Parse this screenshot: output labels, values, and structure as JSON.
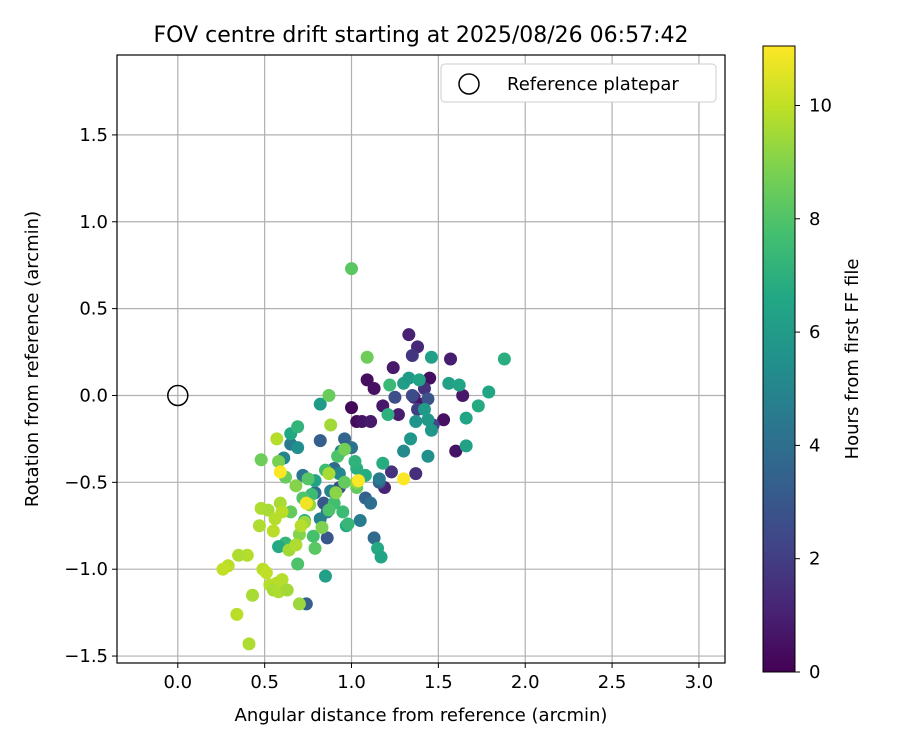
{
  "chart_data": {
    "type": "scatter",
    "title": "FOV centre drift starting at 2025/08/26 06:57:42",
    "xlabel": "Angular distance from reference (arcmin)",
    "ylabel": "Rotation from reference (arcmin)",
    "xlim": [
      -0.35,
      3.15
    ],
    "ylim": [
      -1.54,
      1.96
    ],
    "xticks": [
      0.0,
      0.5,
      1.0,
      1.5,
      2.0,
      2.5,
      3.0
    ],
    "xtick_labels": [
      "0.0",
      "0.5",
      "1.0",
      "1.5",
      "2.0",
      "2.5",
      "3.0"
    ],
    "yticks": [
      -1.5,
      -1.0,
      -0.5,
      0.0,
      0.5,
      1.0,
      1.5
    ],
    "ytick_labels": [
      "−1.5",
      "−1.0",
      "−0.5",
      "0.0",
      "0.5",
      "1.0",
      "1.5"
    ],
    "grid": true,
    "colormap": "viridis",
    "colorbar": {
      "label": "Hours from first FF file",
      "min": 0,
      "max": 11.05,
      "ticks": [
        0,
        2,
        4,
        6,
        8,
        10
      ],
      "tick_labels": [
        "0",
        "2",
        "4",
        "6",
        "8",
        "10"
      ]
    },
    "legend": {
      "position": "top-right",
      "entries": [
        {
          "label": "Reference platepar",
          "marker": "open-circle",
          "color": "#000000"
        }
      ]
    },
    "reference_point": {
      "x": 0.0,
      "y": 0.0
    },
    "points": [
      {
        "x": 1.0,
        "y": -0.07,
        "h": 0.2
      },
      {
        "x": 1.03,
        "y": -0.15,
        "h": 0.3
      },
      {
        "x": 1.09,
        "y": 0.09,
        "h": 0.4
      },
      {
        "x": 1.13,
        "y": 0.04,
        "h": 0.5
      },
      {
        "x": 1.18,
        "y": -0.06,
        "h": 0.7
      },
      {
        "x": 1.24,
        "y": 0.16,
        "h": 0.8
      },
      {
        "x": 1.27,
        "y": -0.11,
        "h": 0.9
      },
      {
        "x": 1.33,
        "y": 0.35,
        "h": 1.0
      },
      {
        "x": 1.36,
        "y": -0.01,
        "h": 1.1
      },
      {
        "x": 1.38,
        "y": 0.28,
        "h": 1.2
      },
      {
        "x": 1.41,
        "y": -0.05,
        "h": 0.6
      },
      {
        "x": 1.45,
        "y": 0.1,
        "h": 0.4
      },
      {
        "x": 1.53,
        "y": -0.14,
        "h": 0.5
      },
      {
        "x": 1.57,
        "y": 0.21,
        "h": 0.9
      },
      {
        "x": 1.6,
        "y": -0.32,
        "h": 0.6
      },
      {
        "x": 1.64,
        "y": 0.0,
        "h": 0.7
      },
      {
        "x": 1.42,
        "y": 0.04,
        "h": 1.6
      },
      {
        "x": 1.35,
        "y": 0.23,
        "h": 1.7
      },
      {
        "x": 1.23,
        "y": -0.44,
        "h": 1.6
      },
      {
        "x": 1.06,
        "y": -0.15,
        "h": 0.6
      },
      {
        "x": 1.11,
        "y": -0.15,
        "h": 0.8
      },
      {
        "x": 1.37,
        "y": -0.45,
        "h": 1.5
      },
      {
        "x": 1.19,
        "y": -0.53,
        "h": 1.1
      },
      {
        "x": 1.47,
        "y": -0.17,
        "h": 2.3
      },
      {
        "x": 1.38,
        "y": -0.08,
        "h": 2.0
      },
      {
        "x": 1.44,
        "y": -0.02,
        "h": 2.8
      },
      {
        "x": 1.25,
        "y": -0.01,
        "h": 2.6
      },
      {
        "x": 1.35,
        "y": 0.0,
        "h": 2.5
      },
      {
        "x": 0.82,
        "y": -0.26,
        "h": 3.3
      },
      {
        "x": 0.93,
        "y": -0.53,
        "h": 2.7
      },
      {
        "x": 0.84,
        "y": -0.62,
        "h": 3.0
      },
      {
        "x": 0.96,
        "y": -0.25,
        "h": 3.6
      },
      {
        "x": 0.74,
        "y": -1.2,
        "h": 3.3
      },
      {
        "x": 0.86,
        "y": -0.82,
        "h": 3.0
      },
      {
        "x": 1.13,
        "y": -0.82,
        "h": 3.8
      },
      {
        "x": 1.16,
        "y": -0.5,
        "h": 3.3
      },
      {
        "x": 1.08,
        "y": -0.59,
        "h": 3.5
      },
      {
        "x": 0.9,
        "y": -0.42,
        "h": 3.8
      },
      {
        "x": 0.79,
        "y": -0.56,
        "h": 3.9
      },
      {
        "x": 0.72,
        "y": -0.46,
        "h": 4.3
      },
      {
        "x": 1.16,
        "y": -0.48,
        "h": 4.5
      },
      {
        "x": 1.11,
        "y": -0.62,
        "h": 4.0
      },
      {
        "x": 1.05,
        "y": -0.72,
        "h": 4.6
      },
      {
        "x": 0.86,
        "y": -0.67,
        "h": 4.2
      },
      {
        "x": 0.88,
        "y": -0.55,
        "h": 4.9
      },
      {
        "x": 0.93,
        "y": -0.45,
        "h": 5.1
      },
      {
        "x": 0.82,
        "y": -0.71,
        "h": 4.8
      },
      {
        "x": 0.94,
        "y": -0.32,
        "h": 5.0
      },
      {
        "x": 1.0,
        "y": -0.3,
        "h": 4.2
      },
      {
        "x": 0.65,
        "y": -0.28,
        "h": 4.5
      },
      {
        "x": 0.61,
        "y": -0.36,
        "h": 5.0
      },
      {
        "x": 0.69,
        "y": -0.3,
        "h": 5.5
      },
      {
        "x": 1.3,
        "y": -0.32,
        "h": 5.2
      },
      {
        "x": 1.34,
        "y": -0.25,
        "h": 5.8
      },
      {
        "x": 1.44,
        "y": -0.35,
        "h": 5.5
      },
      {
        "x": 1.46,
        "y": -0.2,
        "h": 5.8
      },
      {
        "x": 1.44,
        "y": -0.14,
        "h": 5.9
      },
      {
        "x": 1.42,
        "y": -0.08,
        "h": 6.0
      },
      {
        "x": 1.37,
        "y": -0.15,
        "h": 5.7
      },
      {
        "x": 1.3,
        "y": 0.07,
        "h": 6.1
      },
      {
        "x": 1.33,
        "y": 0.1,
        "h": 6.0
      },
      {
        "x": 1.39,
        "y": 0.09,
        "h": 6.4
      },
      {
        "x": 1.46,
        "y": 0.22,
        "h": 6.2
      },
      {
        "x": 1.56,
        "y": 0.07,
        "h": 6.3
      },
      {
        "x": 1.62,
        "y": 0.06,
        "h": 6.5
      },
      {
        "x": 1.66,
        "y": -0.13,
        "h": 6.5
      },
      {
        "x": 1.66,
        "y": -0.29,
        "h": 6.3
      },
      {
        "x": 1.73,
        "y": -0.06,
        "h": 6.7
      },
      {
        "x": 1.79,
        "y": 0.02,
        "h": 6.5
      },
      {
        "x": 1.88,
        "y": 0.21,
        "h": 6.9
      },
      {
        "x": 1.15,
        "y": -0.88,
        "h": 6.7
      },
      {
        "x": 1.17,
        "y": -0.93,
        "h": 6.5
      },
      {
        "x": 0.85,
        "y": -1.04,
        "h": 6.2
      },
      {
        "x": 0.82,
        "y": -0.05,
        "h": 6.0
      },
      {
        "x": 0.65,
        "y": -0.22,
        "h": 6.6
      },
      {
        "x": 0.69,
        "y": -0.18,
        "h": 7.2
      },
      {
        "x": 0.62,
        "y": -0.85,
        "h": 7.3
      },
      {
        "x": 0.58,
        "y": -0.87,
        "h": 6.7
      },
      {
        "x": 0.73,
        "y": -0.72,
        "h": 6.9
      },
      {
        "x": 0.79,
        "y": -0.49,
        "h": 6.4
      },
      {
        "x": 0.97,
        "y": -0.75,
        "h": 6.7
      },
      {
        "x": 1.03,
        "y": -0.42,
        "h": 6.9
      },
      {
        "x": 1.08,
        "y": -0.46,
        "h": 6.8
      },
      {
        "x": 1.02,
        "y": -0.38,
        "h": 7.1
      },
      {
        "x": 1.18,
        "y": -0.39,
        "h": 6.8
      },
      {
        "x": 1.21,
        "y": -0.11,
        "h": 7.0
      },
      {
        "x": 1.22,
        "y": 0.06,
        "h": 7.4
      },
      {
        "x": 0.77,
        "y": -0.57,
        "h": 7.5
      },
      {
        "x": 0.74,
        "y": -0.61,
        "h": 7.2
      },
      {
        "x": 0.9,
        "y": -0.62,
        "h": 7.7
      },
      {
        "x": 0.95,
        "y": -0.67,
        "h": 7.5
      },
      {
        "x": 0.87,
        "y": -0.66,
        "h": 7.9
      },
      {
        "x": 0.78,
        "y": -0.81,
        "h": 7.8
      },
      {
        "x": 0.69,
        "y": -0.97,
        "h": 7.9
      },
      {
        "x": 0.75,
        "y": -0.48,
        "h": 8.1
      },
      {
        "x": 0.72,
        "y": -0.59,
        "h": 8.0
      },
      {
        "x": 0.79,
        "y": -0.88,
        "h": 8.2
      },
      {
        "x": 0.65,
        "y": -0.67,
        "h": 8.4
      },
      {
        "x": 0.85,
        "y": -0.43,
        "h": 7.6
      },
      {
        "x": 0.92,
        "y": -0.35,
        "h": 7.9
      },
      {
        "x": 0.96,
        "y": -0.5,
        "h": 8.4
      },
      {
        "x": 0.98,
        "y": -0.74,
        "h": 7.3
      },
      {
        "x": 1.03,
        "y": -0.53,
        "h": 8.4
      },
      {
        "x": 0.48,
        "y": -0.37,
        "h": 8.6
      },
      {
        "x": 0.58,
        "y": -0.38,
        "h": 8.8
      },
      {
        "x": 0.62,
        "y": -0.47,
        "h": 8.5
      },
      {
        "x": 0.68,
        "y": -0.52,
        "h": 9.0
      },
      {
        "x": 0.87,
        "y": 0.0,
        "h": 8.5
      },
      {
        "x": 1.0,
        "y": 0.73,
        "h": 8.2
      },
      {
        "x": 1.09,
        "y": 0.22,
        "h": 8.6
      },
      {
        "x": 0.96,
        "y": -0.31,
        "h": 8.7
      },
      {
        "x": 0.83,
        "y": -0.76,
        "h": 8.9
      },
      {
        "x": 0.76,
        "y": -0.63,
        "h": 9.3
      },
      {
        "x": 0.73,
        "y": -0.73,
        "h": 9.4
      },
      {
        "x": 0.7,
        "y": -0.8,
        "h": 9.0
      },
      {
        "x": 0.88,
        "y": -0.17,
        "h": 9.5
      },
      {
        "x": 0.87,
        "y": -0.45,
        "h": 9.6
      },
      {
        "x": 0.91,
        "y": -0.56,
        "h": 9.1
      },
      {
        "x": 1.03,
        "y": -0.5,
        "h": 9.2
      },
      {
        "x": 0.7,
        "y": -1.2,
        "h": 9.4
      },
      {
        "x": 0.57,
        "y": -0.25,
        "h": 9.8
      },
      {
        "x": 0.59,
        "y": -0.62,
        "h": 9.6
      },
      {
        "x": 0.48,
        "y": -0.65,
        "h": 9.7
      },
      {
        "x": 0.52,
        "y": -0.66,
        "h": 9.6
      },
      {
        "x": 0.55,
        "y": -0.78,
        "h": 9.9
      },
      {
        "x": 0.56,
        "y": -0.71,
        "h": 9.8
      },
      {
        "x": 0.6,
        "y": -0.67,
        "h": 9.9
      },
      {
        "x": 0.64,
        "y": -0.89,
        "h": 9.5
      },
      {
        "x": 0.68,
        "y": -0.86,
        "h": 9.7
      },
      {
        "x": 0.71,
        "y": -0.75,
        "h": 9.8
      },
      {
        "x": 0.47,
        "y": -0.75,
        "h": 9.7
      },
      {
        "x": 0.49,
        "y": -1.0,
        "h": 9.9
      },
      {
        "x": 0.51,
        "y": -1.02,
        "h": 10.0
      },
      {
        "x": 0.53,
        "y": -1.09,
        "h": 9.8
      },
      {
        "x": 0.57,
        "y": -1.08,
        "h": 9.9
      },
      {
        "x": 0.55,
        "y": -1.12,
        "h": 9.6
      },
      {
        "x": 0.58,
        "y": -1.13,
        "h": 9.7
      },
      {
        "x": 0.6,
        "y": -1.06,
        "h": 9.8
      },
      {
        "x": 0.63,
        "y": -1.12,
        "h": 9.5
      },
      {
        "x": 0.4,
        "y": -0.92,
        "h": 9.8
      },
      {
        "x": 0.43,
        "y": -1.15,
        "h": 9.6
      },
      {
        "x": 0.35,
        "y": -0.92,
        "h": 9.7
      },
      {
        "x": 0.29,
        "y": -0.98,
        "h": 9.9
      },
      {
        "x": 0.26,
        "y": -1.0,
        "h": 10.0
      },
      {
        "x": 0.34,
        "y": -1.26,
        "h": 9.9
      },
      {
        "x": 0.41,
        "y": -1.43,
        "h": 9.7
      },
      {
        "x": 0.59,
        "y": -0.44,
        "h": 11.0
      },
      {
        "x": 0.74,
        "y": -0.62,
        "h": 10.8
      },
      {
        "x": 1.04,
        "y": -0.49,
        "h": 11.0
      },
      {
        "x": 1.3,
        "y": -0.48,
        "h": 11.0
      }
    ]
  }
}
